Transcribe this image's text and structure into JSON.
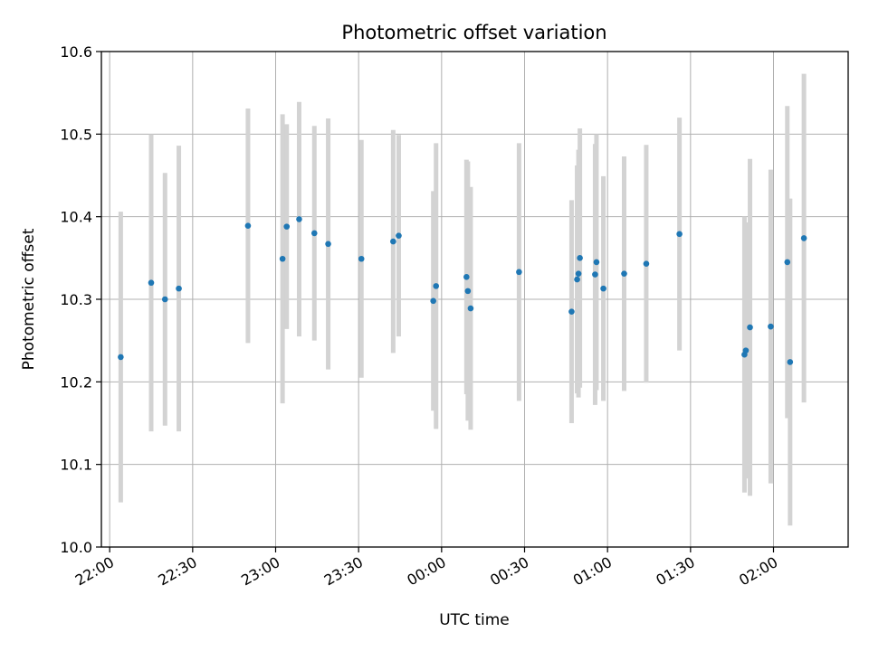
{
  "chart_data": {
    "type": "scatter",
    "title": "Photometric offset variation",
    "xlabel": "UTC time",
    "ylabel": "Photometric offset",
    "xlim": [
      "2000-01-01T21:57:00",
      "2000-01-02T02:27:00"
    ],
    "ylim": [
      10.0,
      10.6
    ],
    "y_ticks": [
      "10.0",
      "10.1",
      "10.2",
      "10.3",
      "10.4",
      "10.5",
      "10.6"
    ],
    "x_ticks": [
      {
        "time": "2000-01-01T22:00:00",
        "label": "22:00"
      },
      {
        "time": "2000-01-01T22:30:00",
        "label": "22:30"
      },
      {
        "time": "2000-01-01T23:00:00",
        "label": "23:00"
      },
      {
        "time": "2000-01-01T23:30:00",
        "label": "23:30"
      },
      {
        "time": "2000-01-02T00:00:00",
        "label": "00:00"
      },
      {
        "time": "2000-01-02T00:30:00",
        "label": "00:30"
      },
      {
        "time": "2000-01-02T01:00:00",
        "label": "01:00"
      },
      {
        "time": "2000-01-02T01:30:00",
        "label": "01:30"
      },
      {
        "time": "2000-01-02T02:00:00",
        "label": "02:00"
      }
    ],
    "grid": true,
    "marker_color": "#1f77b4",
    "errorbar_color": "#d3d3d3",
    "points": [
      {
        "x": "2000-01-01T22:04:00",
        "y": 10.23,
        "err": 0.176
      },
      {
        "x": "2000-01-01T22:15:00",
        "y": 10.32,
        "err": 0.18
      },
      {
        "x": "2000-01-01T22:20:00",
        "y": 10.3,
        "err": 0.153
      },
      {
        "x": "2000-01-01T22:25:00",
        "y": 10.313,
        "err": 0.173
      },
      {
        "x": "2000-01-01T22:50:00",
        "y": 10.389,
        "err": 0.142
      },
      {
        "x": "2000-01-01T23:02:30",
        "y": 10.349,
        "err": 0.175
      },
      {
        "x": "2000-01-01T23:04:00",
        "y": 10.388,
        "err": 0.124
      },
      {
        "x": "2000-01-01T23:08:30",
        "y": 10.397,
        "err": 0.142
      },
      {
        "x": "2000-01-01T23:14:00",
        "y": 10.38,
        "err": 0.13
      },
      {
        "x": "2000-01-01T23:19:00",
        "y": 10.367,
        "err": 0.152
      },
      {
        "x": "2000-01-01T23:31:00",
        "y": 10.349,
        "err": 0.144
      },
      {
        "x": "2000-01-01T23:42:30",
        "y": 10.37,
        "err": 0.135
      },
      {
        "x": "2000-01-01T23:44:30",
        "y": 10.377,
        "err": 0.122
      },
      {
        "x": "2000-01-01T23:57:00",
        "y": 10.298,
        "err": 0.133
      },
      {
        "x": "2000-01-01T23:58:00",
        "y": 10.316,
        "err": 0.173
      },
      {
        "x": "2000-01-02T00:09:00",
        "y": 10.327,
        "err": 0.142
      },
      {
        "x": "2000-01-02T00:09:30",
        "y": 10.31,
        "err": 0.157
      },
      {
        "x": "2000-01-02T00:10:30",
        "y": 10.289,
        "err": 0.147
      },
      {
        "x": "2000-01-02T00:28:00",
        "y": 10.333,
        "err": 0.156
      },
      {
        "x": "2000-01-02T00:47:00",
        "y": 10.285,
        "err": 0.135
      },
      {
        "x": "2000-01-02T00:49:00",
        "y": 10.324,
        "err": 0.138
      },
      {
        "x": "2000-01-02T00:49:30",
        "y": 10.331,
        "err": 0.15
      },
      {
        "x": "2000-01-02T00:50:00",
        "y": 10.35,
        "err": 0.157
      },
      {
        "x": "2000-01-02T00:55:30",
        "y": 10.33,
        "err": 0.158
      },
      {
        "x": "2000-01-02T00:56:00",
        "y": 10.345,
        "err": 0.155
      },
      {
        "x": "2000-01-02T00:58:30",
        "y": 10.313,
        "err": 0.136
      },
      {
        "x": "2000-01-02T01:06:00",
        "y": 10.331,
        "err": 0.142
      },
      {
        "x": "2000-01-02T01:14:00",
        "y": 10.343,
        "err": 0.144
      },
      {
        "x": "2000-01-02T01:26:00",
        "y": 10.379,
        "err": 0.141
      },
      {
        "x": "2000-01-02T01:49:30",
        "y": 10.233,
        "err": 0.167
      },
      {
        "x": "2000-01-02T01:50:00",
        "y": 10.238,
        "err": 0.155
      },
      {
        "x": "2000-01-02T01:51:30",
        "y": 10.266,
        "err": 0.204
      },
      {
        "x": "2000-01-02T01:59:00",
        "y": 10.267,
        "err": 0.19
      },
      {
        "x": "2000-01-02T02:05:00",
        "y": 10.345,
        "err": 0.189
      },
      {
        "x": "2000-01-02T02:06:00",
        "y": 10.224,
        "err": 0.198
      },
      {
        "x": "2000-01-02T02:11:00",
        "y": 10.374,
        "err": 0.199
      }
    ]
  }
}
